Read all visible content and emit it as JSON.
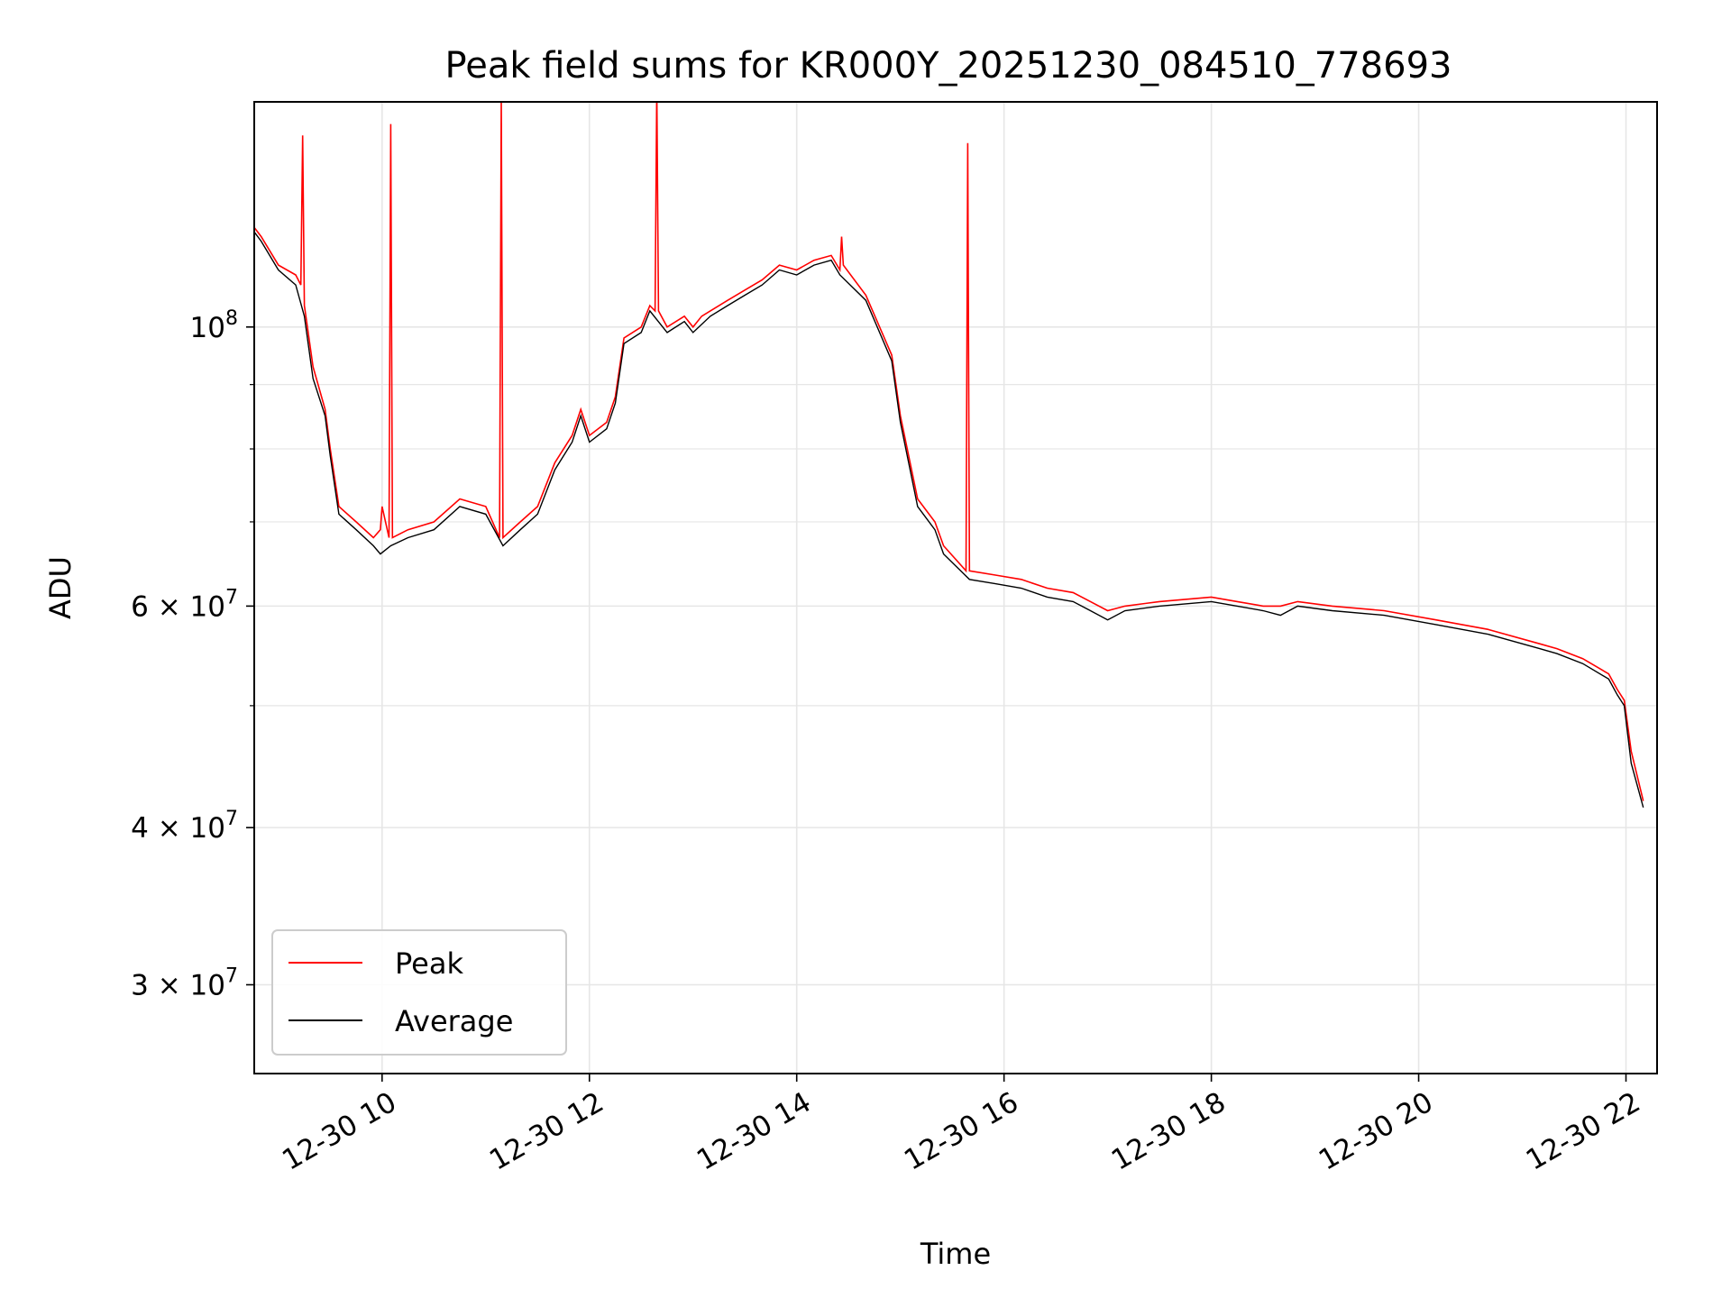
{
  "chart_data": {
    "type": "line",
    "title": "Peak field sums for KR000Y_20251230_084510_778693",
    "xlabel": "Time",
    "ylabel": "ADU",
    "yscale": "log",
    "grid": true,
    "legend_position": "lower-left",
    "xlim": [
      "2025-12-30 08:46",
      "2025-12-30 22:18"
    ],
    "ylim": [
      25500000,
      151000000
    ],
    "x_ticks": [
      {
        "value": "2025-12-30 10:00",
        "label": "12-30 10"
      },
      {
        "value": "2025-12-30 12:00",
        "label": "12-30 12"
      },
      {
        "value": "2025-12-30 14:00",
        "label": "12-30 14"
      },
      {
        "value": "2025-12-30 16:00",
        "label": "12-30 16"
      },
      {
        "value": "2025-12-30 18:00",
        "label": "12-30 18"
      },
      {
        "value": "2025-12-30 20:00",
        "label": "12-30 20"
      },
      {
        "value": "2025-12-30 22:00",
        "label": "12-30 22"
      }
    ],
    "y_ticks": [
      {
        "value": 100000000,
        "label": "10",
        "exp": "8"
      },
      {
        "value": 60000000,
        "label": "6 × 10",
        "exp": "7"
      },
      {
        "value": 40000000,
        "label": "4 × 10",
        "exp": "7"
      },
      {
        "value": 30000000,
        "label": "3 × 10",
        "exp": "7"
      }
    ],
    "y_minor_ticks": [
      90000000,
      80000000,
      70000000,
      50000000
    ],
    "series": [
      {
        "name": "Peak",
        "color": "#ff0000",
        "points": [
          [
            "2025-12-30 08:46",
            120000000
          ],
          [
            "2025-12-30 08:50",
            118000000
          ],
          [
            "2025-12-30 09:00",
            112000000
          ],
          [
            "2025-12-30 09:10",
            110000000
          ],
          [
            "2025-12-30 09:13",
            108000000
          ],
          [
            "2025-12-30 09:14",
            142000000
          ],
          [
            "2025-12-30 09:15",
            104000000
          ],
          [
            "2025-12-30 09:20",
            93000000
          ],
          [
            "2025-12-30 09:27",
            86000000
          ],
          [
            "2025-12-30 09:30",
            80000000
          ],
          [
            "2025-12-30 09:35",
            72000000
          ],
          [
            "2025-12-30 09:45",
            70000000
          ],
          [
            "2025-12-30 09:55",
            68000000
          ],
          [
            "2025-12-30 09:59",
            69000000
          ],
          [
            "2025-12-30 10:00",
            72000000
          ],
          [
            "2025-12-30 10:04",
            68000000
          ],
          [
            "2025-12-30 10:05",
            145000000
          ],
          [
            "2025-12-30 10:06",
            68000000
          ],
          [
            "2025-12-30 10:15",
            69000000
          ],
          [
            "2025-12-30 10:30",
            70000000
          ],
          [
            "2025-12-30 10:45",
            73000000
          ],
          [
            "2025-12-30 11:00",
            72000000
          ],
          [
            "2025-12-30 11:08",
            68000000
          ],
          [
            "2025-12-30 11:09",
            152000000
          ],
          [
            "2025-12-30 11:10",
            68000000
          ],
          [
            "2025-12-30 11:20",
            70000000
          ],
          [
            "2025-12-30 11:30",
            72000000
          ],
          [
            "2025-12-30 11:40",
            78000000
          ],
          [
            "2025-12-30 11:50",
            82000000
          ],
          [
            "2025-12-30 11:55",
            86000000
          ],
          [
            "2025-12-30 12:00",
            82000000
          ],
          [
            "2025-12-30 12:10",
            84000000
          ],
          [
            "2025-12-30 12:15",
            88000000
          ],
          [
            "2025-12-30 12:20",
            98000000
          ],
          [
            "2025-12-30 12:30",
            100000000
          ],
          [
            "2025-12-30 12:35",
            104000000
          ],
          [
            "2025-12-30 12:38",
            103000000
          ],
          [
            "2025-12-30 12:39",
            155000000
          ],
          [
            "2025-12-30 12:40",
            103000000
          ],
          [
            "2025-12-30 12:45",
            100000000
          ],
          [
            "2025-12-30 12:55",
            102000000
          ],
          [
            "2025-12-30 13:00",
            100000000
          ],
          [
            "2025-12-30 13:05",
            102000000
          ],
          [
            "2025-12-30 13:10",
            103000000
          ],
          [
            "2025-12-30 13:20",
            105000000
          ],
          [
            "2025-12-30 13:30",
            107000000
          ],
          [
            "2025-12-30 13:40",
            109000000
          ],
          [
            "2025-12-30 13:50",
            112000000
          ],
          [
            "2025-12-30 14:00",
            111000000
          ],
          [
            "2025-12-30 14:10",
            113000000
          ],
          [
            "2025-12-30 14:20",
            114000000
          ],
          [
            "2025-12-30 14:25",
            111000000
          ],
          [
            "2025-12-30 14:26",
            118000000
          ],
          [
            "2025-12-30 14:27",
            112000000
          ],
          [
            "2025-12-30 14:40",
            106000000
          ],
          [
            "2025-12-30 14:55",
            95000000
          ],
          [
            "2025-12-30 15:00",
            85000000
          ],
          [
            "2025-12-30 15:10",
            73000000
          ],
          [
            "2025-12-30 15:20",
            70000000
          ],
          [
            "2025-12-30 15:25",
            67000000
          ],
          [
            "2025-12-30 15:38",
            64000000
          ],
          [
            "2025-12-30 15:39",
            140000000
          ],
          [
            "2025-12-30 15:40",
            64000000
          ],
          [
            "2025-12-30 15:55",
            63500000
          ],
          [
            "2025-12-30 16:10",
            63000000
          ],
          [
            "2025-12-30 16:25",
            62000000
          ],
          [
            "2025-12-30 16:40",
            61500000
          ],
          [
            "2025-12-30 16:50",
            60500000
          ],
          [
            "2025-12-30 17:00",
            59500000
          ],
          [
            "2025-12-30 17:10",
            60000000
          ],
          [
            "2025-12-30 17:30",
            60500000
          ],
          [
            "2025-12-30 18:00",
            61000000
          ],
          [
            "2025-12-30 18:15",
            60500000
          ],
          [
            "2025-12-30 18:30",
            60000000
          ],
          [
            "2025-12-30 18:40",
            60000000
          ],
          [
            "2025-12-30 18:50",
            60500000
          ],
          [
            "2025-12-30 19:10",
            60000000
          ],
          [
            "2025-12-30 19:40",
            59500000
          ],
          [
            "2025-12-30 20:10",
            58500000
          ],
          [
            "2025-12-30 20:40",
            57500000
          ],
          [
            "2025-12-30 21:10",
            56000000
          ],
          [
            "2025-12-30 21:20",
            55500000
          ],
          [
            "2025-12-30 21:35",
            54500000
          ],
          [
            "2025-12-30 21:50",
            53000000
          ],
          [
            "2025-12-30 21:55",
            51500000
          ],
          [
            "2025-12-30 21:59",
            50500000
          ],
          [
            "2025-12-30 22:03",
            46000000
          ],
          [
            "2025-12-30 22:10",
            42000000
          ]
        ]
      },
      {
        "name": "Average",
        "color": "#000000",
        "points": [
          [
            "2025-12-30 08:46",
            119000000
          ],
          [
            "2025-12-30 08:50",
            117000000
          ],
          [
            "2025-12-30 09:00",
            111000000
          ],
          [
            "2025-12-30 09:10",
            108000000
          ],
          [
            "2025-12-30 09:15",
            102000000
          ],
          [
            "2025-12-30 09:20",
            91000000
          ],
          [
            "2025-12-30 09:27",
            85000000
          ],
          [
            "2025-12-30 09:30",
            79000000
          ],
          [
            "2025-12-30 09:35",
            71000000
          ],
          [
            "2025-12-30 09:45",
            69000000
          ],
          [
            "2025-12-30 09:55",
            67000000
          ],
          [
            "2025-12-30 09:59",
            66000000
          ],
          [
            "2025-12-30 10:05",
            67000000
          ],
          [
            "2025-12-30 10:15",
            68000000
          ],
          [
            "2025-12-30 10:30",
            69000000
          ],
          [
            "2025-12-30 10:45",
            72000000
          ],
          [
            "2025-12-30 11:00",
            71000000
          ],
          [
            "2025-12-30 11:10",
            67000000
          ],
          [
            "2025-12-30 11:20",
            69000000
          ],
          [
            "2025-12-30 11:30",
            71000000
          ],
          [
            "2025-12-30 11:40",
            77000000
          ],
          [
            "2025-12-30 11:50",
            81000000
          ],
          [
            "2025-12-30 11:55",
            85000000
          ],
          [
            "2025-12-30 12:00",
            81000000
          ],
          [
            "2025-12-30 12:10",
            83000000
          ],
          [
            "2025-12-30 12:15",
            87000000
          ],
          [
            "2025-12-30 12:20",
            97000000
          ],
          [
            "2025-12-30 12:30",
            99000000
          ],
          [
            "2025-12-30 12:35",
            103000000
          ],
          [
            "2025-12-30 12:45",
            99000000
          ],
          [
            "2025-12-30 12:55",
            101000000
          ],
          [
            "2025-12-30 13:00",
            99000000
          ],
          [
            "2025-12-30 13:10",
            102000000
          ],
          [
            "2025-12-30 13:20",
            104000000
          ],
          [
            "2025-12-30 13:30",
            106000000
          ],
          [
            "2025-12-30 13:40",
            108000000
          ],
          [
            "2025-12-30 13:50",
            111000000
          ],
          [
            "2025-12-30 14:00",
            110000000
          ],
          [
            "2025-12-30 14:10",
            112000000
          ],
          [
            "2025-12-30 14:20",
            113000000
          ],
          [
            "2025-12-30 14:25",
            110000000
          ],
          [
            "2025-12-30 14:40",
            105000000
          ],
          [
            "2025-12-30 14:55",
            94000000
          ],
          [
            "2025-12-30 15:00",
            84000000
          ],
          [
            "2025-12-30 15:10",
            72000000
          ],
          [
            "2025-12-30 15:20",
            69000000
          ],
          [
            "2025-12-30 15:25",
            66000000
          ],
          [
            "2025-12-30 15:40",
            63000000
          ],
          [
            "2025-12-30 15:55",
            62500000
          ],
          [
            "2025-12-30 16:10",
            62000000
          ],
          [
            "2025-12-30 16:25",
            61000000
          ],
          [
            "2025-12-30 16:40",
            60500000
          ],
          [
            "2025-12-30 16:50",
            59500000
          ],
          [
            "2025-12-30 17:00",
            58500000
          ],
          [
            "2025-12-30 17:10",
            59500000
          ],
          [
            "2025-12-30 17:30",
            60000000
          ],
          [
            "2025-12-30 18:00",
            60500000
          ],
          [
            "2025-12-30 18:15",
            60000000
          ],
          [
            "2025-12-30 18:30",
            59500000
          ],
          [
            "2025-12-30 18:40",
            59000000
          ],
          [
            "2025-12-30 18:50",
            60000000
          ],
          [
            "2025-12-30 19:10",
            59500000
          ],
          [
            "2025-12-30 19:40",
            59000000
          ],
          [
            "2025-12-30 20:10",
            58000000
          ],
          [
            "2025-12-30 20:40",
            57000000
          ],
          [
            "2025-12-30 21:10",
            55500000
          ],
          [
            "2025-12-30 21:20",
            55000000
          ],
          [
            "2025-12-30 21:35",
            54000000
          ],
          [
            "2025-12-30 21:50",
            52500000
          ],
          [
            "2025-12-30 21:55",
            51000000
          ],
          [
            "2025-12-30 21:59",
            50000000
          ],
          [
            "2025-12-30 22:03",
            45000000
          ],
          [
            "2025-12-30 22:10",
            41500000
          ]
        ]
      }
    ]
  },
  "colors": {
    "grid": "#e6e6e6",
    "axes": "#000000",
    "legend_border": "#cccccc"
  }
}
